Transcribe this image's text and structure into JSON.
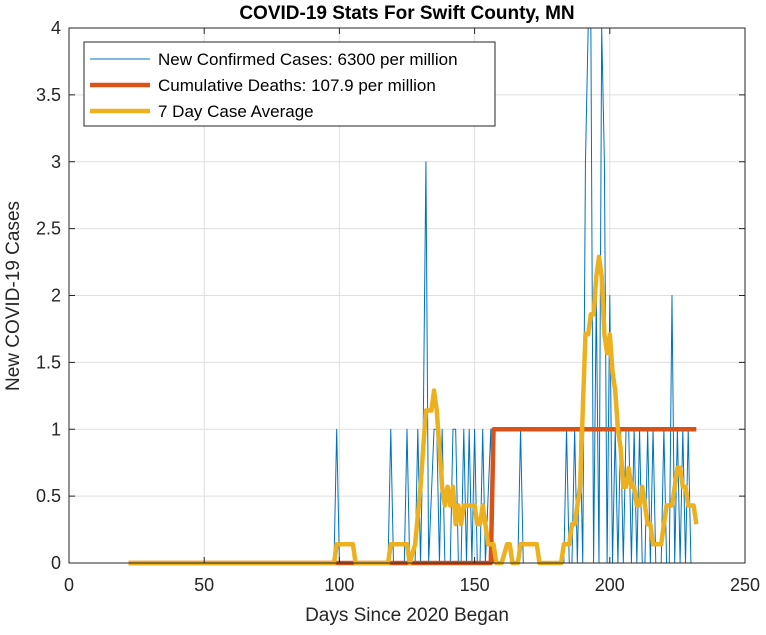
{
  "chart_data": {
    "type": "line",
    "title": "COVID-19 Stats For Swift County, MN",
    "xlabel": "Days Since 2020 Began",
    "ylabel": "New COVID-19 Cases",
    "xlim": [
      0,
      250
    ],
    "ylim": [
      0,
      4
    ],
    "xticks": [
      0,
      50,
      100,
      150,
      200,
      250
    ],
    "yticks": [
      0,
      0.5,
      1,
      1.5,
      2,
      2.5,
      3,
      3.5,
      4
    ],
    "grid": true,
    "legend_location": "top-left",
    "series": [
      {
        "name": "New Confirmed Cases: 6300 per million",
        "color": "#0072BD",
        "line_width": "thin",
        "points": [
          [
            22,
            0
          ],
          [
            98,
            0
          ],
          [
            99,
            1
          ],
          [
            100,
            0
          ],
          [
            118,
            0
          ],
          [
            119,
            1
          ],
          [
            120,
            0
          ],
          [
            124,
            0
          ],
          [
            125,
            1
          ],
          [
            126,
            0
          ],
          [
            128,
            0
          ],
          [
            129,
            1
          ],
          [
            130,
            0
          ],
          [
            131,
            1
          ],
          [
            132,
            3
          ],
          [
            133,
            0
          ],
          [
            135,
            1
          ],
          [
            136,
            1
          ],
          [
            137,
            0
          ],
          [
            138,
            1
          ],
          [
            139,
            0
          ],
          [
            140,
            0
          ],
          [
            141,
            0
          ],
          [
            142,
            1
          ],
          [
            143,
            1
          ],
          [
            144,
            0
          ],
          [
            145,
            0
          ],
          [
            146,
            1
          ],
          [
            147,
            0
          ],
          [
            148,
            1
          ],
          [
            149,
            0
          ],
          [
            150,
            1
          ],
          [
            151,
            0
          ],
          [
            152,
            0
          ],
          [
            153,
            1
          ],
          [
            154,
            0
          ],
          [
            156,
            1
          ],
          [
            157,
            0
          ],
          [
            166,
            0
          ],
          [
            167,
            1
          ],
          [
            168,
            0
          ],
          [
            183,
            0
          ],
          [
            184,
            1
          ],
          [
            185,
            0
          ],
          [
            186,
            0
          ],
          [
            187,
            1
          ],
          [
            188,
            0
          ],
          [
            189,
            1
          ],
          [
            190,
            0
          ],
          [
            191,
            3
          ],
          [
            192,
            4
          ],
          [
            193,
            4
          ],
          [
            194,
            0
          ],
          [
            195,
            2
          ],
          [
            196,
            0
          ],
          [
            197,
            4
          ],
          [
            198,
            3
          ],
          [
            199,
            0
          ],
          [
            200,
            2
          ],
          [
            201,
            0
          ],
          [
            202,
            1
          ],
          [
            203,
            0
          ],
          [
            204,
            1
          ],
          [
            205,
            0
          ],
          [
            206,
            1
          ],
          [
            207,
            1
          ],
          [
            208,
            0
          ],
          [
            209,
            1
          ],
          [
            210,
            0
          ],
          [
            211,
            1
          ],
          [
            212,
            0
          ],
          [
            213,
            0
          ],
          [
            214,
            1
          ],
          [
            215,
            0
          ],
          [
            216,
            1
          ],
          [
            217,
            0
          ],
          [
            218,
            0
          ],
          [
            219,
            0
          ],
          [
            220,
            1
          ],
          [
            221,
            0
          ],
          [
            222,
            0
          ],
          [
            223,
            2
          ],
          [
            224,
            0
          ],
          [
            225,
            1
          ],
          [
            226,
            0
          ],
          [
            227,
            1
          ],
          [
            228,
            0
          ],
          [
            229,
            1
          ],
          [
            230,
            0
          ],
          [
            231,
            0
          ],
          [
            232,
            0
          ]
        ]
      },
      {
        "name": "Cumulative Deaths: 107.9 per million",
        "color": "#D95319",
        "line_width": "thick",
        "points": [
          [
            22,
            0
          ],
          [
            156,
            0
          ],
          [
            157,
            1
          ],
          [
            232,
            1
          ]
        ]
      },
      {
        "name": "7 Day Case Average",
        "color": "#EDB120",
        "line_width": "thick",
        "points": [
          [
            22,
            0
          ],
          [
            98,
            0
          ],
          [
            99,
            0.14
          ],
          [
            105,
            0.14
          ],
          [
            106,
            0
          ],
          [
            118,
            0
          ],
          [
            119,
            0.14
          ],
          [
            125,
            0.14
          ],
          [
            126,
            0
          ],
          [
            128,
            0.14
          ],
          [
            130,
            0.57
          ],
          [
            131,
            0.86
          ],
          [
            132,
            1.14
          ],
          [
            134,
            1.14
          ],
          [
            135,
            1.29
          ],
          [
            136,
            1.14
          ],
          [
            137,
            0.86
          ],
          [
            138,
            0.57
          ],
          [
            139,
            0.43
          ],
          [
            140,
            0.57
          ],
          [
            141,
            0.43
          ],
          [
            142,
            0.57
          ],
          [
            143,
            0.29
          ],
          [
            144,
            0.43
          ],
          [
            145,
            0.29
          ],
          [
            146,
            0.43
          ],
          [
            147,
            0.43
          ],
          [
            148,
            0.43
          ],
          [
            149,
            0.43
          ],
          [
            150,
            0.43
          ],
          [
            151,
            0.29
          ],
          [
            152,
            0.29
          ],
          [
            153,
            0.43
          ],
          [
            154,
            0.29
          ],
          [
            155,
            0.14
          ],
          [
            157,
            0.14
          ],
          [
            158,
            0
          ],
          [
            160,
            0
          ],
          [
            162,
            0.14
          ],
          [
            163,
            0.14
          ],
          [
            164,
            0
          ],
          [
            166,
            0
          ],
          [
            167,
            0.14
          ],
          [
            173,
            0.14
          ],
          [
            174,
            0
          ],
          [
            182,
            0
          ],
          [
            183,
            0.14
          ],
          [
            185,
            0.14
          ],
          [
            186,
            0.29
          ],
          [
            187,
            0.29
          ],
          [
            188,
            0.43
          ],
          [
            189,
            0.57
          ],
          [
            190,
            1.14
          ],
          [
            191,
            1.71
          ],
          [
            192,
            1.71
          ],
          [
            193,
            1.86
          ],
          [
            194,
            1.86
          ],
          [
            195,
            2.14
          ],
          [
            196,
            2.29
          ],
          [
            197,
            2.14
          ],
          [
            198,
            1.71
          ],
          [
            199,
            1.57
          ],
          [
            200,
            1.71
          ],
          [
            201,
            1.43
          ],
          [
            202,
            1.29
          ],
          [
            203,
            1.0
          ],
          [
            204,
            0.86
          ],
          [
            205,
            0.57
          ],
          [
            206,
            0.57
          ],
          [
            207,
            0.71
          ],
          [
            208,
            0.57
          ],
          [
            209,
            0.57
          ],
          [
            210,
            0.43
          ],
          [
            211,
            0.43
          ],
          [
            212,
            0.57
          ],
          [
            213,
            0.43
          ],
          [
            214,
            0.29
          ],
          [
            215,
            0.29
          ],
          [
            216,
            0.14
          ],
          [
            217,
            0.14
          ],
          [
            219,
            0.14
          ],
          [
            220,
            0.29
          ],
          [
            221,
            0.43
          ],
          [
            222,
            0.43
          ],
          [
            223,
            0.43
          ],
          [
            224,
            0.57
          ],
          [
            225,
            0.71
          ],
          [
            226,
            0.71
          ],
          [
            227,
            0.57
          ],
          [
            228,
            0.57
          ],
          [
            229,
            0.43
          ],
          [
            230,
            0.43
          ],
          [
            231,
            0.43
          ],
          [
            232,
            0.29
          ]
        ]
      }
    ]
  }
}
